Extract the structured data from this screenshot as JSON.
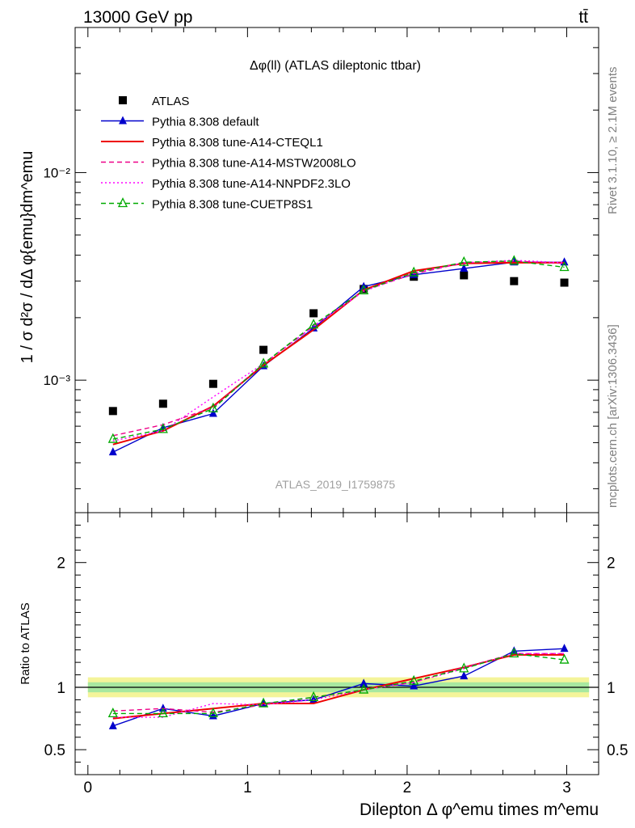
{
  "header": {
    "left": "13000 GeV pp",
    "right": "tt̄"
  },
  "side_text": {
    "top": "Rivet 3.1.10, ≥ 2.1M events",
    "bottom": "mcplots.cern.ch [arXiv:1306.3436]"
  },
  "watermark": "ATLAS_2019_I1759875",
  "chart_data": [
    {
      "type": "line",
      "title": "Δφ(ll) (ATLAS dileptonic ttbar)",
      "ylabel": "1 / σ  d²σ / dΔ φ{emu}dm^emu",
      "y_scale": "log",
      "ylim": [
        0.00023,
        0.05
      ],
      "xlim": [
        -0.08,
        3.2
      ],
      "y_ticks": [
        {
          "value": 0.01,
          "label": "10⁻²"
        },
        {
          "value": 0.001,
          "label": "10⁻³"
        }
      ],
      "grid": false,
      "legend_position": "top-left",
      "x": [
        0.157,
        0.471,
        0.785,
        1.1,
        1.414,
        1.728,
        2.042,
        2.356,
        2.67,
        2.985
      ],
      "series": [
        {
          "name": "ATLAS",
          "color": "#000000",
          "style": "markers",
          "marker": "square",
          "values": [
            0.00071,
            0.00077,
            0.00096,
            0.0014,
            0.0021,
            0.00275,
            0.00315,
            0.0032,
            0.003,
            0.00295
          ]
        },
        {
          "name": "Pythia 8.308 default",
          "color": "#0000cc",
          "style": "solid",
          "marker": "triangle",
          "values": [
            0.00045,
            0.00059,
            0.00069,
            0.00117,
            0.00178,
            0.00282,
            0.00322,
            0.00345,
            0.0037,
            0.0037
          ]
        },
        {
          "name": "Pythia 8.308 tune-A14-CTEQL1",
          "color": "#ee0000",
          "style": "solid",
          "marker": "none",
          "values": [
            0.00049,
            0.00057,
            0.00075,
            0.00118,
            0.00175,
            0.00272,
            0.00336,
            0.00365,
            0.00368,
            0.00368
          ]
        },
        {
          "name": "Pythia 8.308 tune-A14-MSTW2008LO",
          "color": "#ee0088",
          "style": "dashed",
          "marker": "none",
          "values": [
            0.00054,
            0.00061,
            0.00074,
            0.0012,
            0.00182,
            0.0027,
            0.00325,
            0.00368,
            0.00375,
            0.00365
          ]
        },
        {
          "name": "Pythia 8.308 tune-A14-NNPDF2.3LO",
          "color": "#ff00ff",
          "style": "dotted",
          "marker": "none",
          "values": [
            0.00051,
            0.00057,
            0.00083,
            0.0012,
            0.00182,
            0.00268,
            0.00328,
            0.00368,
            0.00378,
            0.00368
          ]
        },
        {
          "name": "Pythia 8.308 tune-CUETP8S1",
          "color": "#00aa00",
          "style": "dashed",
          "marker": "open-triangle",
          "values": [
            0.00052,
            0.00058,
            0.00073,
            0.0012,
            0.00185,
            0.0027,
            0.0033,
            0.0037,
            0.00375,
            0.0035
          ]
        }
      ]
    },
    {
      "type": "line",
      "ylabel": "Ratio to ATLAS",
      "xlabel": "Dilepton Δ φ^emu times m^emu",
      "ylim": [
        0.3,
        2.4
      ],
      "xlim": [
        -0.08,
        3.2
      ],
      "x_ticks": [
        0,
        1,
        2,
        3
      ],
      "y_ticks": [
        0.5,
        1,
        2
      ],
      "reference_line": 1,
      "uncertainty_band": {
        "inner_half_width": 0.04,
        "outer_half_width": 0.08
      },
      "x": [
        0.157,
        0.471,
        0.785,
        1.1,
        1.414,
        1.728,
        2.042,
        2.356,
        2.67,
        2.985
      ],
      "series": [
        {
          "name": "Pythia 8.308 default",
          "color": "#0000cc",
          "style": "solid",
          "marker": "triangle",
          "values": [
            0.69,
            0.83,
            0.77,
            0.87,
            0.9,
            1.03,
            1.01,
            1.09,
            1.29,
            1.31
          ]
        },
        {
          "name": "Pythia 8.308 tune-A14-CTEQL1",
          "color": "#ee0000",
          "style": "solid",
          "marker": "none",
          "values": [
            0.75,
            0.79,
            0.83,
            0.87,
            0.87,
            0.98,
            1.07,
            1.16,
            1.26,
            1.26
          ]
        },
        {
          "name": "Pythia 8.308 tune-A14-MSTW2008LO",
          "color": "#ee0088",
          "style": "dashed",
          "marker": "none",
          "values": [
            0.81,
            0.83,
            0.8,
            0.86,
            0.92,
            0.98,
            1.04,
            1.16,
            1.27,
            1.27
          ]
        },
        {
          "name": "Pythia 8.308 tune-A14-NNPDF2.3LO",
          "color": "#ff00ff",
          "style": "dotted",
          "marker": "none",
          "values": [
            0.76,
            0.76,
            0.87,
            0.86,
            0.9,
            0.98,
            1.04,
            1.15,
            1.27,
            1.27
          ]
        },
        {
          "name": "Pythia 8.308 tune-CUETP8S1",
          "color": "#00aa00",
          "style": "dashed",
          "marker": "open-triangle",
          "values": [
            0.79,
            0.79,
            0.79,
            0.87,
            0.92,
            0.98,
            1.05,
            1.15,
            1.27,
            1.22
          ]
        }
      ]
    }
  ]
}
